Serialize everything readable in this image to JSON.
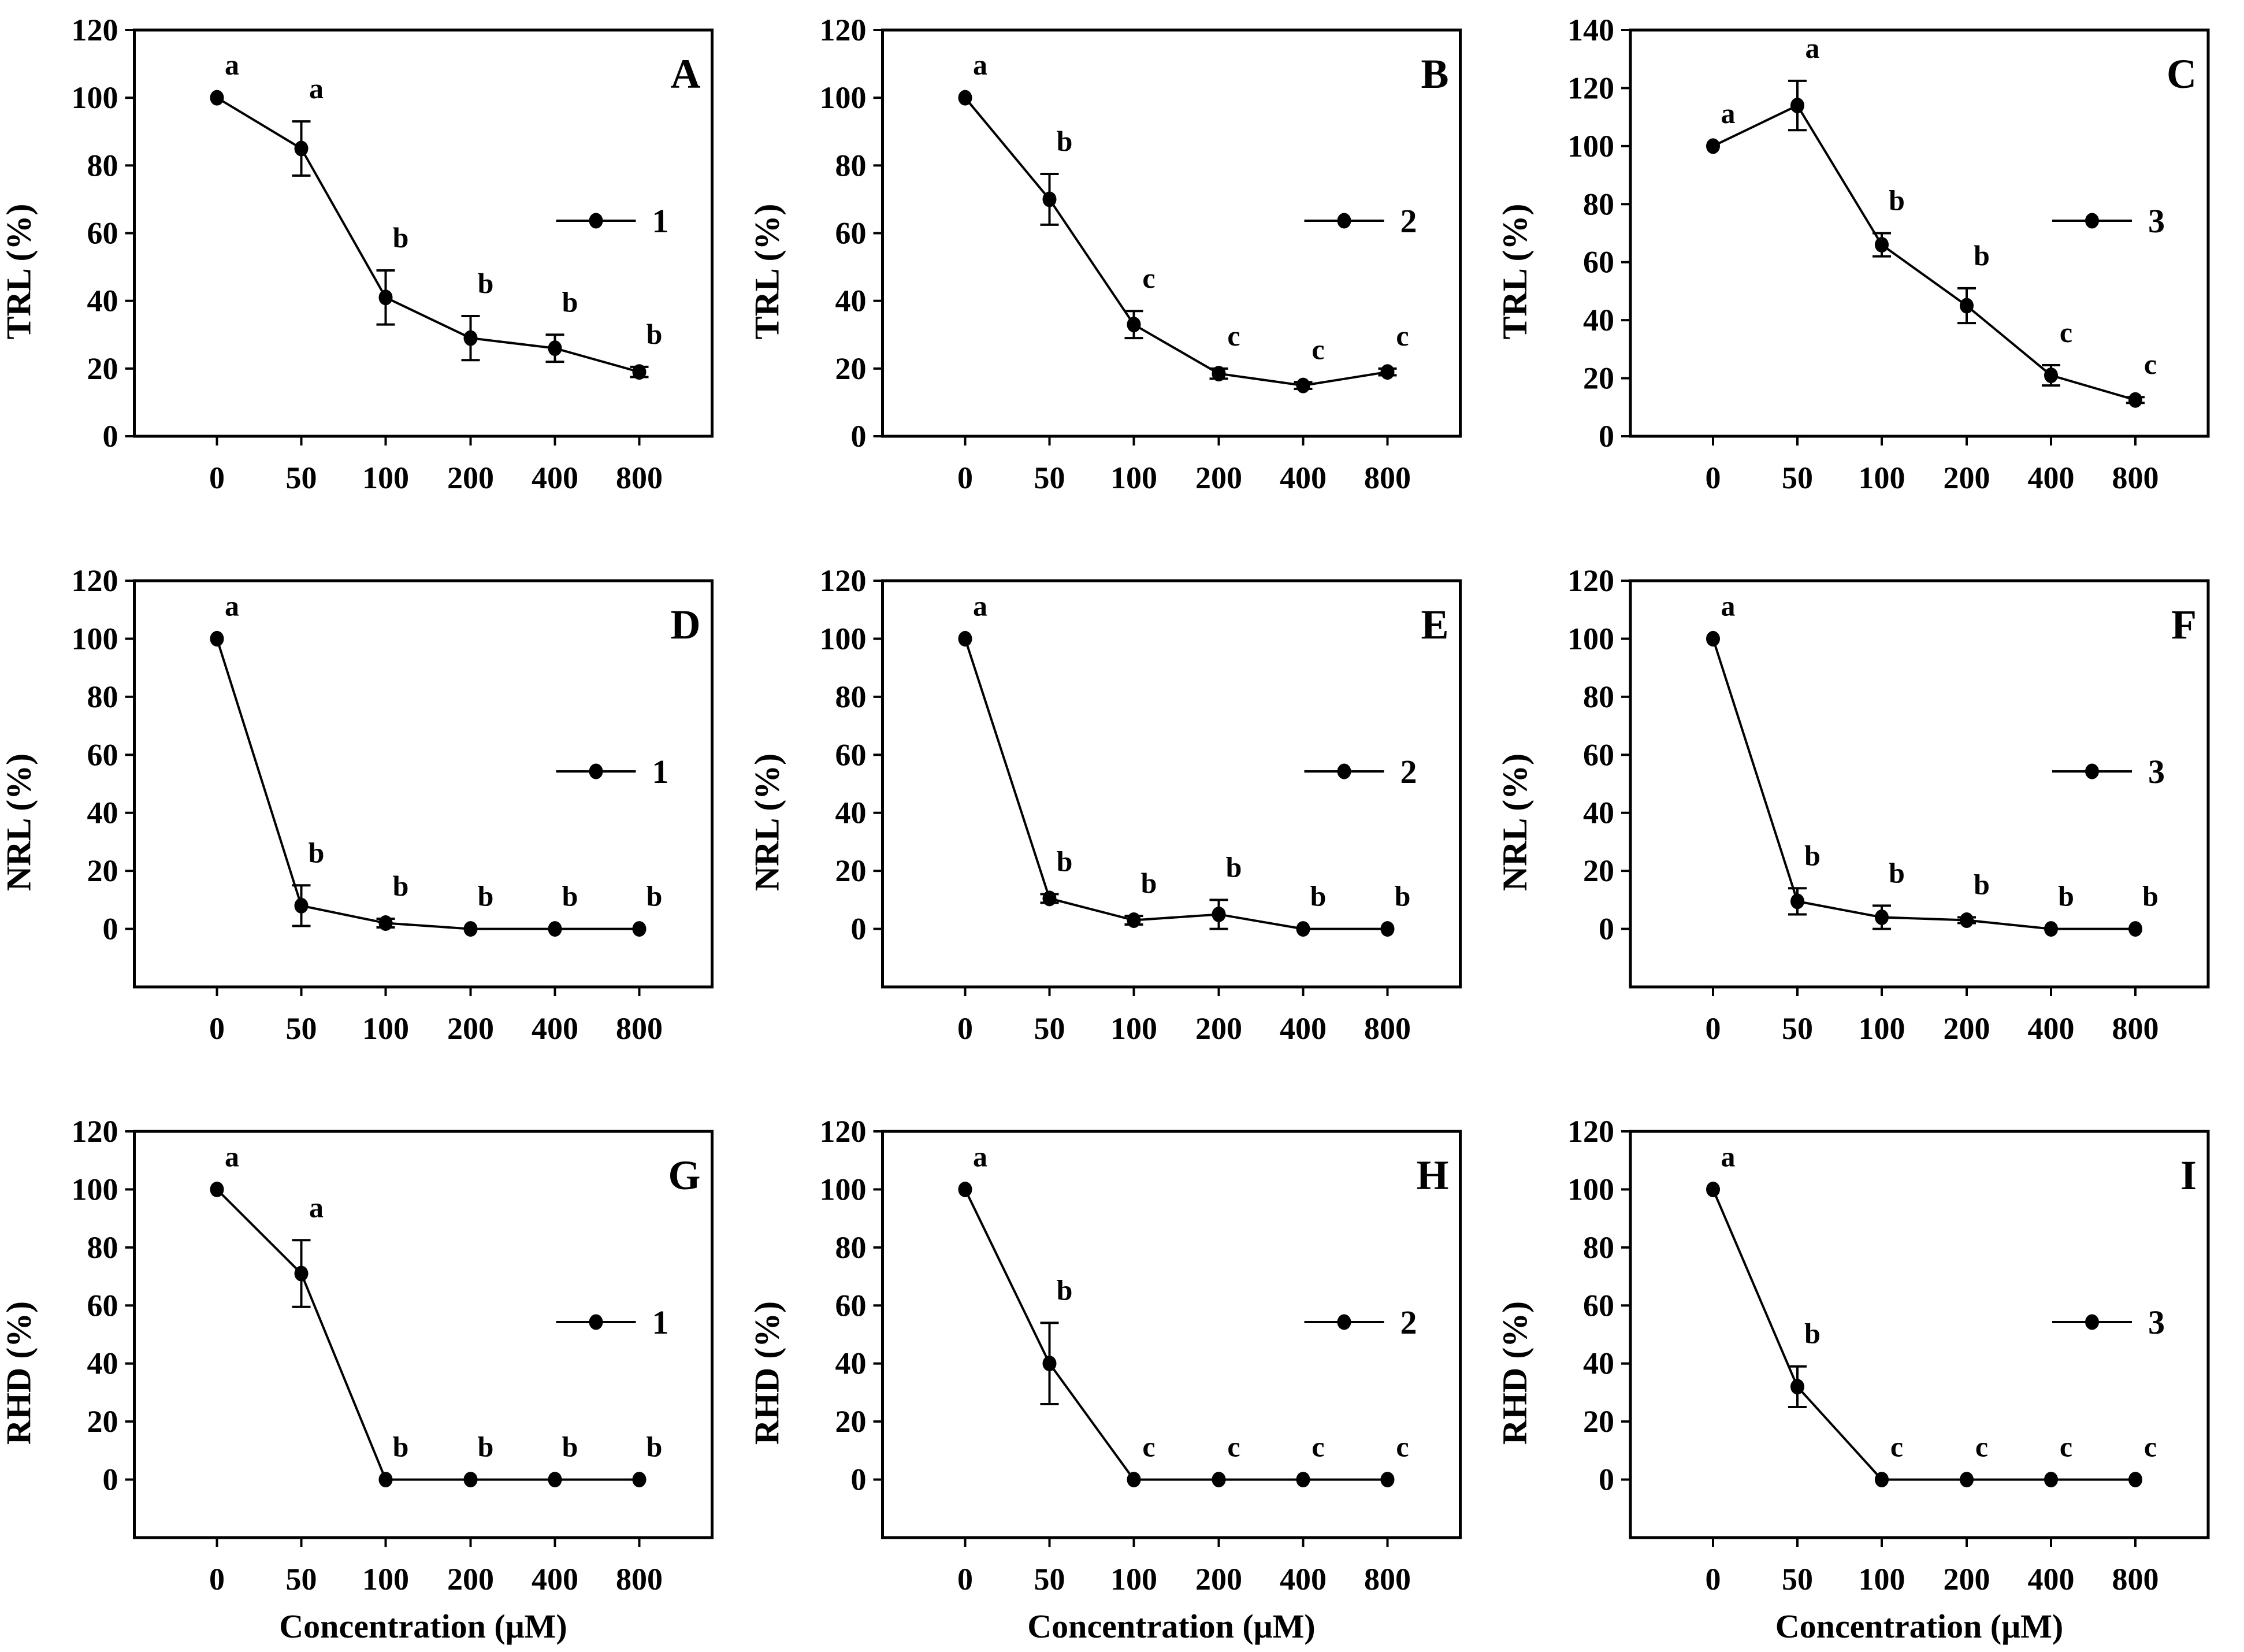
{
  "figure": {
    "xlabel": "Concentration (μM)",
    "x_tick_labels": [
      "0",
      "50",
      "100",
      "200",
      "400",
      "800"
    ],
    "axis_color": "#000000",
    "background_color": "#ffffff",
    "marker_color": "#000000"
  },
  "chart_data": [
    {
      "type": "line",
      "panel": "A",
      "ylabel": "TRL (%)",
      "legend": "1",
      "x": [
        0,
        50,
        100,
        200,
        400,
        800
      ],
      "values": [
        100,
        85,
        41,
        29,
        26,
        19
      ],
      "errors": [
        0,
        8,
        8,
        6.5,
        4,
        1.5
      ],
      "sig_letters": [
        "a",
        "a",
        "b",
        "b",
        "b",
        "b"
      ],
      "ylim": [
        0,
        120
      ],
      "yticks": [
        0,
        20,
        40,
        60,
        80,
        100,
        120
      ],
      "grid": false,
      "legend_position": "center-right",
      "show_xlabel": false
    },
    {
      "type": "line",
      "panel": "B",
      "ylabel": "TRL (%)",
      "legend": "2",
      "x": [
        0,
        50,
        100,
        200,
        400,
        800
      ],
      "values": [
        100,
        70,
        33,
        18.5,
        15,
        19
      ],
      "errors": [
        0,
        7.5,
        4,
        1.5,
        1,
        1
      ],
      "sig_letters": [
        "a",
        "b",
        "c",
        "c",
        "c",
        "c"
      ],
      "ylim": [
        0,
        120
      ],
      "yticks": [
        0,
        20,
        40,
        60,
        80,
        100,
        120
      ],
      "grid": false,
      "legend_position": "center-right",
      "show_xlabel": false
    },
    {
      "type": "line",
      "panel": "C",
      "ylabel": "TRL (%)",
      "legend": "3",
      "x": [
        0,
        50,
        100,
        200,
        400,
        800
      ],
      "values": [
        100,
        114,
        66,
        45,
        21,
        12.5
      ],
      "errors": [
        0,
        8.5,
        4,
        6,
        3.5,
        1
      ],
      "sig_letters": [
        "a",
        "a",
        "b",
        "b",
        "c",
        "c"
      ],
      "ylim": [
        0,
        140
      ],
      "yticks": [
        0,
        20,
        40,
        60,
        80,
        100,
        120,
        140
      ],
      "grid": false,
      "legend_position": "center-right",
      "show_xlabel": false
    },
    {
      "type": "line",
      "panel": "D",
      "ylabel": "NRL (%)",
      "legend": "1",
      "x": [
        0,
        50,
        100,
        200,
        400,
        800
      ],
      "values": [
        100,
        8,
        2,
        0,
        0,
        0
      ],
      "errors": [
        0,
        7,
        1.5,
        0,
        0,
        0
      ],
      "sig_letters": [
        "a",
        "b",
        "b",
        "b",
        "b",
        "b"
      ],
      "ylim": [
        -20,
        120
      ],
      "yticks": [
        0,
        20,
        40,
        60,
        80,
        100,
        120
      ],
      "grid": false,
      "legend_position": "center-right",
      "show_xlabel": false
    },
    {
      "type": "line",
      "panel": "E",
      "ylabel": "NRL (%)",
      "legend": "2",
      "x": [
        0,
        50,
        100,
        200,
        400,
        800
      ],
      "values": [
        100,
        10.5,
        3,
        5,
        0,
        0
      ],
      "errors": [
        0,
        1.5,
        1.5,
        5,
        0,
        0
      ],
      "sig_letters": [
        "a",
        "b",
        "b",
        "b",
        "b",
        "b"
      ],
      "ylim": [
        -20,
        120
      ],
      "yticks": [
        0,
        20,
        40,
        60,
        80,
        100,
        120
      ],
      "grid": false,
      "legend_position": "center-right",
      "show_xlabel": false
    },
    {
      "type": "line",
      "panel": "F",
      "ylabel": "NRL (%)",
      "legend": "3",
      "x": [
        0,
        50,
        100,
        200,
        400,
        800
      ],
      "values": [
        100,
        9.5,
        4,
        3,
        0,
        0
      ],
      "errors": [
        0,
        4.5,
        4,
        1,
        0,
        0
      ],
      "sig_letters": [
        "a",
        "b",
        "b",
        "b",
        "b",
        "b"
      ],
      "ylim": [
        -20,
        120
      ],
      "yticks": [
        0,
        20,
        40,
        60,
        80,
        100,
        120
      ],
      "grid": false,
      "legend_position": "center-right",
      "show_xlabel": false
    },
    {
      "type": "line",
      "panel": "G",
      "ylabel": "RHD (%)",
      "legend": "1",
      "x": [
        0,
        50,
        100,
        200,
        400,
        800
      ],
      "values": [
        100,
        71,
        0,
        0,
        0,
        0
      ],
      "errors": [
        0,
        11.5,
        0,
        0,
        0,
        0
      ],
      "sig_letters": [
        "a",
        "a",
        "b",
        "b",
        "b",
        "b"
      ],
      "ylim": [
        -20,
        120
      ],
      "yticks": [
        0,
        20,
        40,
        60,
        80,
        100,
        120
      ],
      "grid": false,
      "legend_position": "center-right",
      "show_xlabel": true
    },
    {
      "type": "line",
      "panel": "H",
      "ylabel": "RHD (%)",
      "legend": "2",
      "x": [
        0,
        50,
        100,
        200,
        400,
        800
      ],
      "values": [
        100,
        40,
        0,
        0,
        0,
        0
      ],
      "errors": [
        0,
        14,
        0,
        0,
        0,
        0
      ],
      "sig_letters": [
        "a",
        "b",
        "c",
        "c",
        "c",
        "c"
      ],
      "ylim": [
        -20,
        120
      ],
      "yticks": [
        0,
        20,
        40,
        60,
        80,
        100,
        120
      ],
      "grid": false,
      "legend_position": "center-right",
      "show_xlabel": true
    },
    {
      "type": "line",
      "panel": "I",
      "ylabel": "RHD (%)",
      "legend": "3",
      "x": [
        0,
        50,
        100,
        200,
        400,
        800
      ],
      "values": [
        100,
        32,
        0,
        0,
        0,
        0
      ],
      "errors": [
        0,
        7,
        0,
        0,
        0,
        0
      ],
      "sig_letters": [
        "a",
        "b",
        "c",
        "c",
        "c",
        "c"
      ],
      "ylim": [
        -20,
        120
      ],
      "yticks": [
        0,
        20,
        40,
        60,
        80,
        100,
        120
      ],
      "grid": false,
      "legend_position": "center-right",
      "show_xlabel": true
    }
  ]
}
